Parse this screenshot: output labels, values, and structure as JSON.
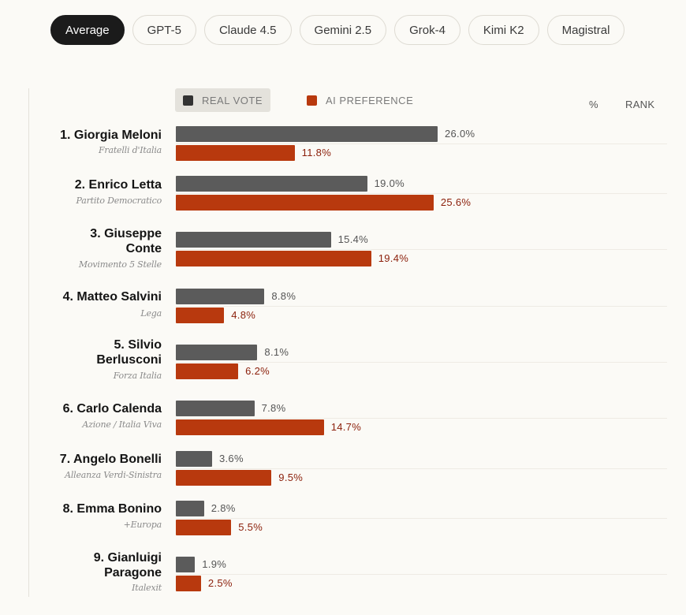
{
  "tabs": [
    {
      "label": "Average",
      "active": true
    },
    {
      "label": "GPT-5",
      "active": false
    },
    {
      "label": "Claude 4.5",
      "active": false
    },
    {
      "label": "Gemini 2.5",
      "active": false
    },
    {
      "label": "Grok-4",
      "active": false
    },
    {
      "label": "Kimi K2",
      "active": false
    },
    {
      "label": "Magistral",
      "active": false
    }
  ],
  "legend": {
    "real": "REAL VOTE",
    "ai": "AI PREFERENCE"
  },
  "columns": {
    "percent": "%",
    "rank": "RANK"
  },
  "colors": {
    "real": "#5b5b5b",
    "ai": "#b8390e",
    "ai_text": "#8b1f0a"
  },
  "chart_data": {
    "type": "bar",
    "orientation": "horizontal",
    "unit": "%",
    "xlim": [
      0,
      26
    ],
    "candidates": [
      {
        "label": "1. Giorgia Meloni",
        "party": "Fratelli d'Italia",
        "real": 26.0,
        "ai": 11.8,
        "real_label": "26.0%",
        "ai_label": "11.8%"
      },
      {
        "label": "2. Enrico Letta",
        "party": "Partito Democratico",
        "real": 19.0,
        "ai": 25.6,
        "real_label": "19.0%",
        "ai_label": "25.6%"
      },
      {
        "label": "3. Giuseppe Conte",
        "party": "Movimento 5 Stelle",
        "real": 15.4,
        "ai": 19.4,
        "real_label": "15.4%",
        "ai_label": "19.4%"
      },
      {
        "label": "4. Matteo Salvini",
        "party": "Lega",
        "real": 8.8,
        "ai": 4.8,
        "real_label": "8.8%",
        "ai_label": "4.8%"
      },
      {
        "label": "5. Silvio Berlusconi",
        "party": "Forza Italia",
        "real": 8.1,
        "ai": 6.2,
        "real_label": "8.1%",
        "ai_label": "6.2%"
      },
      {
        "label": "6. Carlo Calenda",
        "party": "Azione / Italia Viva",
        "real": 7.8,
        "ai": 14.7,
        "real_label": "7.8%",
        "ai_label": "14.7%"
      },
      {
        "label": "7. Angelo Bonelli",
        "party": "Alleanza Verdi-Sinistra",
        "real": 3.6,
        "ai": 9.5,
        "real_label": "3.6%",
        "ai_label": "9.5%"
      },
      {
        "label": "8. Emma Bonino",
        "party": "+Europa",
        "real": 2.8,
        "ai": 5.5,
        "real_label": "2.8%",
        "ai_label": "5.5%"
      },
      {
        "label": "9. Gianluigi Paragone",
        "party": "Italexit",
        "real": 1.9,
        "ai": 2.5,
        "real_label": "1.9%",
        "ai_label": "2.5%"
      }
    ]
  }
}
